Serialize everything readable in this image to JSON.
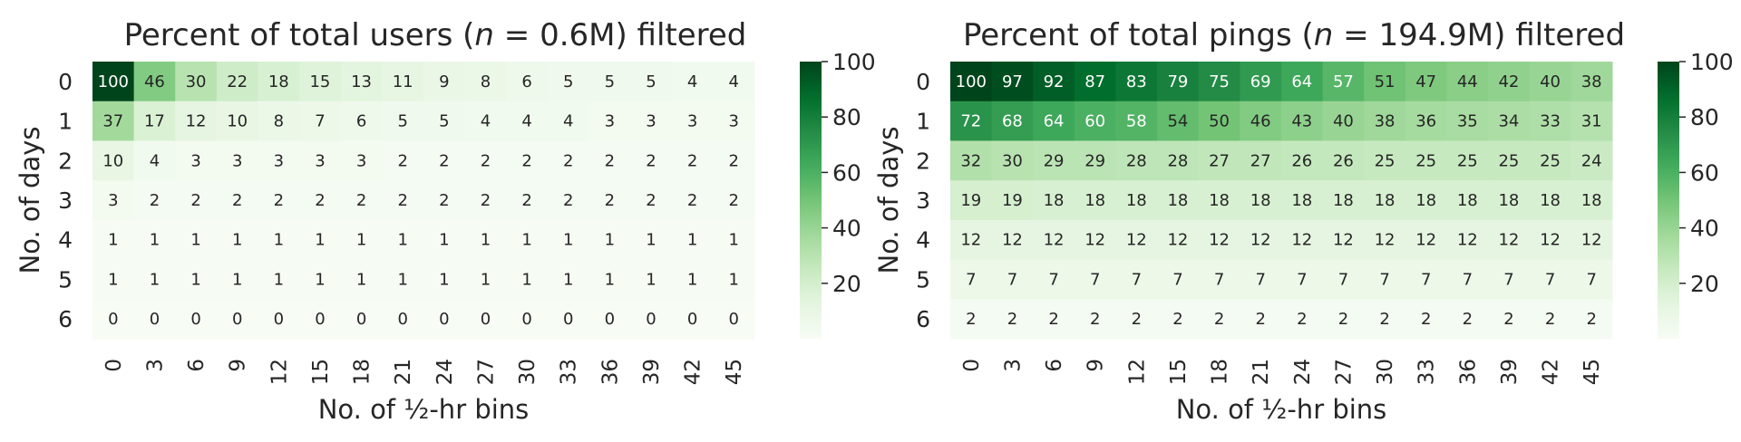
{
  "chart_data": [
    {
      "type": "heatmap",
      "title_prefix": "Percent of total users (",
      "title_var": "n",
      "title_mid": " = 0.6M",
      "title_suffix": ") filtered",
      "xlabel": "No. of ½-hr bins",
      "ylabel": "No. of days",
      "x": [
        "0",
        "3",
        "6",
        "9",
        "12",
        "15",
        "18",
        "21",
        "24",
        "27",
        "30",
        "33",
        "36",
        "39",
        "42",
        "45"
      ],
      "y": [
        "0",
        "1",
        "2",
        "3",
        "4",
        "5",
        "6"
      ],
      "values": [
        [
          100,
          46,
          30,
          22,
          18,
          15,
          13,
          11,
          9,
          8,
          6,
          5,
          5,
          5,
          4,
          4
        ],
        [
          37,
          17,
          12,
          10,
          8,
          7,
          6,
          5,
          5,
          4,
          4,
          4,
          3,
          3,
          3,
          3
        ],
        [
          10,
          4,
          3,
          3,
          3,
          3,
          3,
          2,
          2,
          2,
          2,
          2,
          2,
          2,
          2,
          2
        ],
        [
          3,
          2,
          2,
          2,
          2,
          2,
          2,
          2,
          2,
          2,
          2,
          2,
          2,
          2,
          2,
          2
        ],
        [
          1,
          1,
          1,
          1,
          1,
          1,
          1,
          1,
          1,
          1,
          1,
          1,
          1,
          1,
          1,
          1
        ],
        [
          1,
          1,
          1,
          1,
          1,
          1,
          1,
          1,
          1,
          1,
          1,
          1,
          1,
          1,
          1,
          1
        ],
        [
          0,
          0,
          0,
          0,
          0,
          0,
          0,
          0,
          0,
          0,
          0,
          0,
          0,
          0,
          0,
          0
        ]
      ],
      "colorbar": {
        "ticks": [
          20,
          40,
          60,
          80,
          100
        ],
        "range": [
          0,
          100
        ]
      },
      "colormap": "Greens"
    },
    {
      "type": "heatmap",
      "title_prefix": "Percent of total pings (",
      "title_var": "n",
      "title_mid": " = 194.9M",
      "title_suffix": ") filtered",
      "xlabel": "No. of ½-hr bins",
      "ylabel": "No. of days",
      "x": [
        "0",
        "3",
        "6",
        "9",
        "12",
        "15",
        "18",
        "21",
        "24",
        "27",
        "30",
        "33",
        "36",
        "39",
        "42",
        "45"
      ],
      "y": [
        "0",
        "1",
        "2",
        "3",
        "4",
        "5",
        "6"
      ],
      "values": [
        [
          100,
          97,
          92,
          87,
          83,
          79,
          75,
          69,
          64,
          57,
          51,
          47,
          44,
          42,
          40,
          38
        ],
        [
          72,
          68,
          64,
          60,
          58,
          54,
          50,
          46,
          43,
          40,
          38,
          36,
          35,
          34,
          33,
          31
        ],
        [
          32,
          30,
          29,
          29,
          28,
          28,
          27,
          27,
          26,
          26,
          25,
          25,
          25,
          25,
          25,
          24
        ],
        [
          19,
          19,
          18,
          18,
          18,
          18,
          18,
          18,
          18,
          18,
          18,
          18,
          18,
          18,
          18,
          18
        ],
        [
          12,
          12,
          12,
          12,
          12,
          12,
          12,
          12,
          12,
          12,
          12,
          12,
          12,
          12,
          12,
          12
        ],
        [
          7,
          7,
          7,
          7,
          7,
          7,
          7,
          7,
          7,
          7,
          7,
          7,
          7,
          7,
          7,
          7
        ],
        [
          2,
          2,
          2,
          2,
          2,
          2,
          2,
          2,
          2,
          2,
          2,
          2,
          2,
          2,
          2,
          2
        ]
      ],
      "colorbar": {
        "ticks": [
          20,
          40,
          60,
          80,
          100
        ],
        "range": [
          0,
          100
        ]
      },
      "colormap": "Greens"
    }
  ]
}
